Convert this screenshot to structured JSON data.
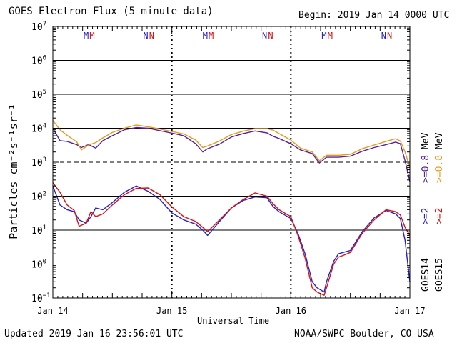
{
  "header": {
    "title": "GOES Electron Flux (5 minute data)",
    "begin": "Begin: 2019 Jan 14 0000 UTC"
  },
  "footer": {
    "updated": "Updated 2019 Jan 16 23:56:01 UTC",
    "credit": "NOAA/SWPC Boulder, CO USA"
  },
  "chart_data": {
    "type": "line",
    "title": "GOES Electron Flux (5 minute data)",
    "xlabel": "Universal Time",
    "ylabel": "Particles cm⁻²s⁻¹sr⁻¹",
    "x_unit": "days since Jan 14 0000 UTC",
    "xlim": [
      0,
      3
    ],
    "x_ticks": [
      {
        "x": 0,
        "label": "Jan 14"
      },
      {
        "x": 1,
        "label": "Jan 15"
      },
      {
        "x": 2,
        "label": "Jan 16"
      },
      {
        "x": 3,
        "label": "Jan 17"
      }
    ],
    "y_scale": "log",
    "ylim_exp": [
      -1,
      7
    ],
    "y_tick_exponents": [
      -1,
      0,
      1,
      2,
      3,
      4,
      5,
      6,
      7
    ],
    "threshold_line_exp": 3,
    "grid": "horizontal at each decade",
    "markers": [
      {
        "x": 0.28,
        "label": "M",
        "color": "#2222cc"
      },
      {
        "x": 0.33,
        "label": "M",
        "color": "#dd1111"
      },
      {
        "x": 0.78,
        "label": "N",
        "color": "#2222cc"
      },
      {
        "x": 0.83,
        "label": "N",
        "color": "#dd1111"
      },
      {
        "x": 1.28,
        "label": "M",
        "color": "#2222cc"
      },
      {
        "x": 1.33,
        "label": "M",
        "color": "#dd1111"
      },
      {
        "x": 1.78,
        "label": "N",
        "color": "#2222cc"
      },
      {
        "x": 1.83,
        "label": "N",
        "color": "#dd1111"
      },
      {
        "x": 2.28,
        "label": "M",
        "color": "#2222cc"
      },
      {
        "x": 2.33,
        "label": "M",
        "color": "#dd1111"
      },
      {
        "x": 2.78,
        "label": "N",
        "color": "#2222cc"
      },
      {
        "x": 2.83,
        "label": "N",
        "color": "#dd1111"
      }
    ],
    "legend": {
      "placement": "right (vertical)",
      "satellites": [
        {
          "label": "GOES14",
          "color": "#000000"
        },
        {
          "label": "GOES15",
          "color": "#000000"
        }
      ],
      "energies": [
        {
          "label": ">=2",
          "color": "#2222cc"
        },
        {
          "label": ">=2",
          "color": "#dd1111"
        },
        {
          "label": ">=0.8",
          "color": "#552299"
        },
        {
          "label": ">=0.8",
          "color": "#e69a1a"
        }
      ],
      "unit": "MeV"
    },
    "series": [
      {
        "satellite": "GOES14",
        "energy": ">=0.8 MeV",
        "color": "#552299",
        "x": [
          0,
          0.06,
          0.12,
          0.2,
          0.24,
          0.3,
          0.36,
          0.42,
          0.5,
          0.6,
          0.7,
          0.8,
          0.9,
          1.0,
          1.1,
          1.2,
          1.26,
          1.3,
          1.4,
          1.5,
          1.6,
          1.7,
          1.8,
          1.85,
          1.9,
          2.0,
          2.08,
          2.18,
          2.24,
          2.3,
          2.4,
          2.5,
          2.6,
          2.7,
          2.8,
          2.88,
          2.92,
          2.96,
          3.0
        ],
        "y": [
          10000,
          4300,
          4100,
          3300,
          2700,
          3300,
          2600,
          4300,
          6000,
          9000,
          10500,
          10000,
          8500,
          7200,
          6000,
          3500,
          2000,
          2500,
          3400,
          5500,
          7000,
          8300,
          7300,
          5800,
          5000,
          3500,
          2300,
          1800,
          950,
          1400,
          1400,
          1500,
          2100,
          2700,
          3300,
          3900,
          3500,
          1100,
          270
        ]
      },
      {
        "satellite": "GOES15",
        "energy": ">=0.8 MeV",
        "color": "#e69a1a",
        "x": [
          0,
          0.06,
          0.12,
          0.2,
          0.24,
          0.3,
          0.36,
          0.42,
          0.5,
          0.6,
          0.7,
          0.8,
          0.9,
          1.0,
          1.1,
          1.2,
          1.26,
          1.3,
          1.4,
          1.5,
          1.6,
          1.7,
          1.8,
          1.85,
          1.9,
          2.0,
          2.08,
          2.18,
          2.24,
          2.3,
          2.4,
          2.5,
          2.6,
          2.7,
          2.8,
          2.88,
          2.92,
          2.96,
          3.0
        ],
        "y": [
          17000,
          9000,
          6200,
          4000,
          2300,
          3200,
          3800,
          5200,
          7500,
          10000,
          12500,
          11000,
          9500,
          8000,
          6800,
          4500,
          2700,
          3000,
          4200,
          6500,
          8200,
          9800,
          9800,
          8800,
          7000,
          4500,
          2600,
          2000,
          1100,
          1600,
          1600,
          1700,
          2500,
          3200,
          4100,
          4900,
          4200,
          2000,
          700
        ]
      },
      {
        "satellite": "GOES14",
        "energy": ">=2 MeV",
        "color": "#2222cc",
        "x": [
          0,
          0.06,
          0.12,
          0.18,
          0.22,
          0.28,
          0.32,
          0.36,
          0.42,
          0.5,
          0.6,
          0.7,
          0.8,
          0.9,
          1.0,
          1.1,
          1.2,
          1.26,
          1.3,
          1.4,
          1.5,
          1.6,
          1.7,
          1.8,
          1.85,
          1.9,
          2.0,
          2.06,
          2.12,
          2.18,
          2.22,
          2.28,
          2.3,
          2.36,
          2.4,
          2.44,
          2.5,
          2.6,
          2.7,
          2.8,
          2.88,
          2.92,
          2.96,
          3.0
        ],
        "y": [
          200,
          55,
          40,
          35,
          20,
          16,
          25,
          45,
          40,
          65,
          130,
          200,
          140,
          80,
          32,
          20,
          15,
          10,
          7,
          18,
          45,
          75,
          95,
          90,
          50,
          35,
          22,
          8,
          2,
          0.3,
          0.2,
          0.15,
          0.3,
          1.2,
          2,
          2.2,
          2.5,
          9,
          23,
          38,
          30,
          22,
          5,
          0.3
        ]
      },
      {
        "satellite": "GOES15",
        "energy": ">=2 MeV",
        "color": "#dd1111",
        "x": [
          0,
          0.06,
          0.12,
          0.18,
          0.22,
          0.28,
          0.32,
          0.36,
          0.42,
          0.5,
          0.6,
          0.7,
          0.8,
          0.9,
          1.0,
          1.1,
          1.2,
          1.26,
          1.3,
          1.4,
          1.5,
          1.6,
          1.7,
          1.8,
          1.85,
          1.9,
          2.0,
          2.06,
          2.12,
          2.18,
          2.22,
          2.28,
          2.3,
          2.36,
          2.4,
          2.44,
          2.5,
          2.6,
          2.7,
          2.8,
          2.88,
          2.92,
          2.96,
          3.0
        ],
        "y": [
          250,
          130,
          55,
          38,
          13,
          16,
          35,
          25,
          30,
          55,
          110,
          170,
          175,
          110,
          48,
          25,
          18,
          12,
          9,
          20,
          45,
          80,
          125,
          100,
          60,
          40,
          25,
          7,
          1.5,
          0.2,
          0.15,
          0.12,
          0.2,
          1,
          1.6,
          1.8,
          2.2,
          8,
          20,
          40,
          35,
          28,
          12,
          7
        ]
      }
    ]
  }
}
